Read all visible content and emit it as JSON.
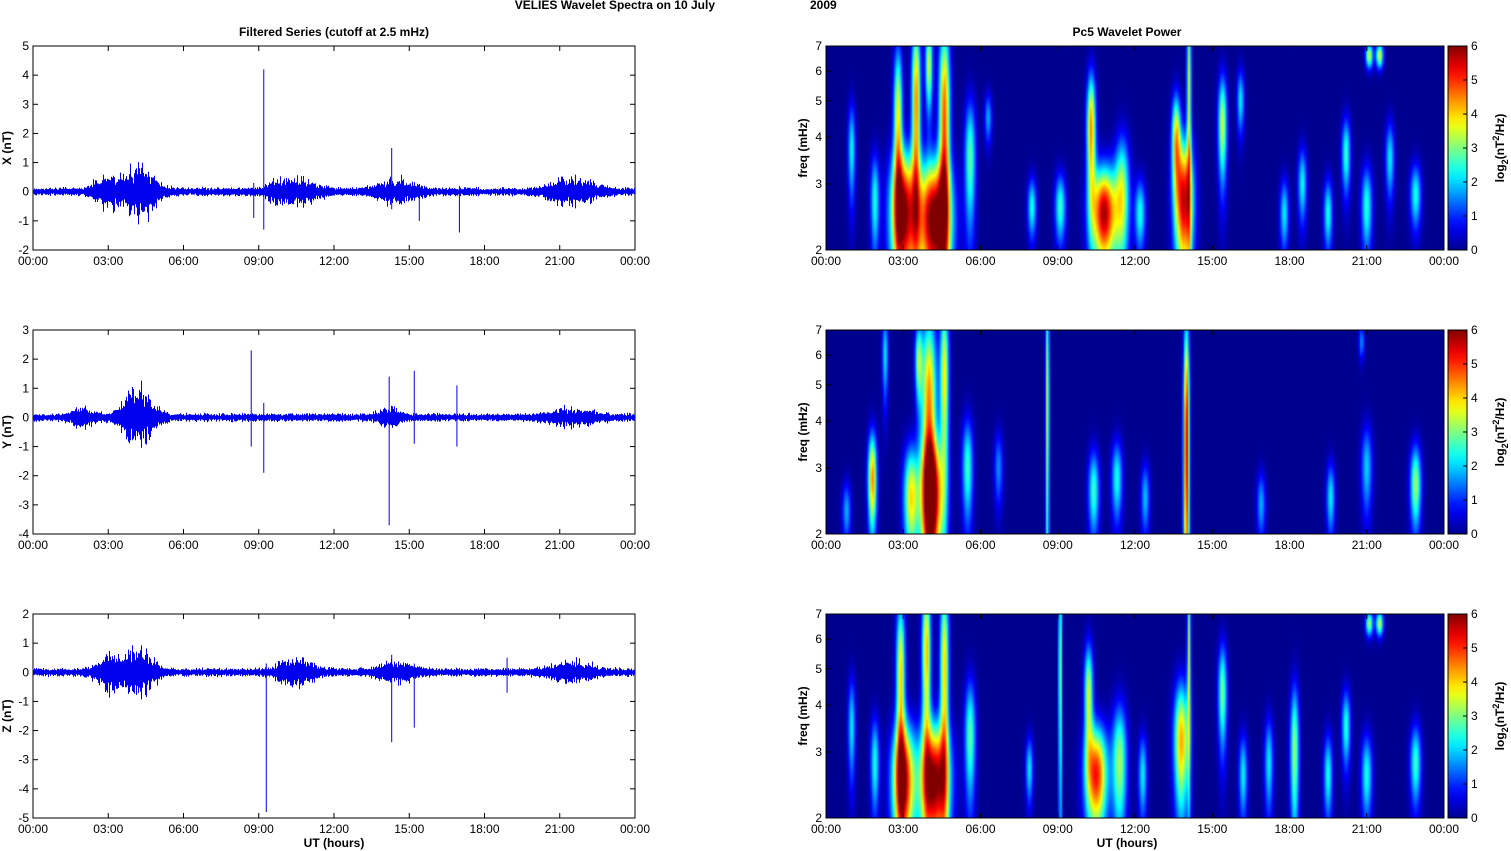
{
  "figure": {
    "suptitle_main": "VELIES Wavelet Spectra on 10 July",
    "suptitle_year": "2009",
    "left_title": "Filtered Series (cutoff at 2.5 mHz)",
    "right_title": "Pc5 Wavelet Power",
    "xlabel": "UT (hours)",
    "freq_label": "freq (mHz)",
    "colorbar_label": "log2(nT²/Hz)",
    "colorbar_label_parts": [
      "log",
      "2",
      "(nT",
      "2",
      "/Hz)"
    ]
  },
  "colors": {
    "trace": "#0000ee",
    "jet": [
      "#00008f",
      "#0000ff",
      "#00ffff",
      "#ffff00",
      "#ff0000",
      "#800000"
    ]
  },
  "chart_data": [
    {
      "type": "line",
      "panel": "X",
      "ylabel": "X (nT)",
      "ylim": [
        -2,
        5
      ],
      "yticks": [
        -2,
        -1,
        0,
        1,
        2,
        3,
        4,
        5
      ],
      "xlim": [
        0,
        24
      ],
      "xticklabels": [
        "00:00",
        "03:00",
        "06:00",
        "09:00",
        "12:00",
        "15:00",
        "18:00",
        "21:00",
        "00:00"
      ],
      "noise_amplitude": 0.12,
      "bursts": [
        {
          "center_h": 3.0,
          "width_h": 0.6,
          "amp": 0.45
        },
        {
          "center_h": 4.3,
          "width_h": 0.7,
          "amp": 0.7
        },
        {
          "center_h": 9.8,
          "width_h": 0.6,
          "amp": 0.25
        },
        {
          "center_h": 10.8,
          "width_h": 0.7,
          "amp": 0.3
        },
        {
          "center_h": 14.5,
          "width_h": 0.9,
          "amp": 0.3
        },
        {
          "center_h": 21.5,
          "width_h": 1.0,
          "amp": 0.35
        }
      ],
      "spikes": [
        {
          "t_h": 9.2,
          "min": -1.3,
          "max": 4.2
        },
        {
          "t_h": 8.8,
          "min": -0.9,
          "max": 0.3
        },
        {
          "t_h": 14.3,
          "min": -0.6,
          "max": 1.5
        },
        {
          "t_h": 17.0,
          "min": -1.4,
          "max": 0.2
        },
        {
          "t_h": 15.4,
          "min": -1.0,
          "max": 0.2
        }
      ]
    },
    {
      "type": "line",
      "panel": "Y",
      "ylabel": "Y (nT)",
      "ylim": [
        -4,
        3
      ],
      "yticks": [
        -4,
        -3,
        -2,
        -1,
        0,
        1,
        2,
        3
      ],
      "xlim": [
        0,
        24
      ],
      "xticklabels": [
        "00:00",
        "03:00",
        "06:00",
        "09:00",
        "12:00",
        "15:00",
        "18:00",
        "21:00",
        "00:00"
      ],
      "noise_amplitude": 0.12,
      "bursts": [
        {
          "center_h": 2.0,
          "width_h": 0.5,
          "amp": 0.25
        },
        {
          "center_h": 4.2,
          "width_h": 0.7,
          "amp": 0.8
        },
        {
          "center_h": 14.2,
          "width_h": 0.5,
          "amp": 0.2
        },
        {
          "center_h": 21.5,
          "width_h": 1.0,
          "amp": 0.2
        }
      ],
      "spikes": [
        {
          "t_h": 8.7,
          "min": -1.0,
          "max": 2.3
        },
        {
          "t_h": 9.2,
          "min": -1.9,
          "max": 0.5
        },
        {
          "t_h": 14.2,
          "min": -3.7,
          "max": 1.4
        },
        {
          "t_h": 15.2,
          "min": -0.9,
          "max": 1.6
        },
        {
          "t_h": 16.9,
          "min": -1.0,
          "max": 1.1
        }
      ]
    },
    {
      "type": "line",
      "panel": "Z",
      "ylabel": "Z (nT)",
      "ylim": [
        -5,
        2
      ],
      "yticks": [
        -5,
        -4,
        -3,
        -2,
        -1,
        0,
        1,
        2
      ],
      "xlim": [
        0,
        24
      ],
      "xticklabels": [
        "00:00",
        "03:00",
        "06:00",
        "09:00",
        "12:00",
        "15:00",
        "18:00",
        "21:00",
        "00:00"
      ],
      "noise_amplitude": 0.12,
      "bursts": [
        {
          "center_h": 3.0,
          "width_h": 0.6,
          "amp": 0.4
        },
        {
          "center_h": 4.2,
          "width_h": 0.7,
          "amp": 0.6
        },
        {
          "center_h": 10.5,
          "width_h": 0.8,
          "amp": 0.35
        },
        {
          "center_h": 14.5,
          "width_h": 0.8,
          "amp": 0.25
        },
        {
          "center_h": 21.5,
          "width_h": 1.0,
          "amp": 0.25
        }
      ],
      "spikes": [
        {
          "t_h": 9.3,
          "min": -4.8,
          "max": 0.3
        },
        {
          "t_h": 14.3,
          "min": -2.4,
          "max": 0.6
        },
        {
          "t_h": 15.2,
          "min": -1.9,
          "max": 0.3
        },
        {
          "t_h": 18.9,
          "min": -0.7,
          "max": 0.5
        }
      ]
    },
    {
      "type": "heatmap",
      "panel": "X power",
      "ylabel": "freq (mHz)",
      "ylim": [
        2,
        7
      ],
      "yscale": "log",
      "yticks": [
        2,
        3,
        4,
        5,
        6,
        7
      ],
      "xlim": [
        0,
        24
      ],
      "xticklabels": [
        "00:00",
        "03:00",
        "06:00",
        "09:00",
        "12:00",
        "15:00",
        "18:00",
        "21:00",
        "00:00"
      ],
      "zlim": [
        0,
        6
      ],
      "zticks": [
        0,
        1,
        2,
        3,
        4,
        5,
        6
      ],
      "blobs": [
        {
          "t": 3.0,
          "f": 2.5,
          "st": 0.35,
          "sf": 0.75,
          "amp": 6.0
        },
        {
          "t": 4.2,
          "f": 2.4,
          "st": 0.45,
          "sf": 0.7,
          "amp": 6.4
        },
        {
          "t": 2.8,
          "f": 4.5,
          "st": 0.12,
          "sf": 1.6,
          "amp": 3.8
        },
        {
          "t": 3.5,
          "f": 5.0,
          "st": 0.12,
          "sf": 2.0,
          "amp": 4.5
        },
        {
          "t": 4.6,
          "f": 4.5,
          "st": 0.15,
          "sf": 2.2,
          "amp": 4.8
        },
        {
          "t": 4.0,
          "f": 6.2,
          "st": 0.1,
          "sf": 1.2,
          "amp": 3.5
        },
        {
          "t": 1.0,
          "f": 3.7,
          "st": 0.1,
          "sf": 0.8,
          "amp": 2.3
        },
        {
          "t": 1.9,
          "f": 2.7,
          "st": 0.12,
          "sf": 0.6,
          "amp": 2.4
        },
        {
          "t": 5.6,
          "f": 3.5,
          "st": 0.15,
          "sf": 1.0,
          "amp": 2.8
        },
        {
          "t": 6.3,
          "f": 4.5,
          "st": 0.1,
          "sf": 0.5,
          "amp": 1.8
        },
        {
          "t": 8.0,
          "f": 2.6,
          "st": 0.12,
          "sf": 0.35,
          "amp": 2.4
        },
        {
          "t": 9.1,
          "f": 2.6,
          "st": 0.15,
          "sf": 0.4,
          "amp": 2.6
        },
        {
          "t": 10.3,
          "f": 4.2,
          "st": 0.12,
          "sf": 1.1,
          "amp": 4.5
        },
        {
          "t": 10.8,
          "f": 2.5,
          "st": 0.35,
          "sf": 0.55,
          "amp": 5.8
        },
        {
          "t": 11.5,
          "f": 2.8,
          "st": 0.2,
          "sf": 0.8,
          "amp": 3.2
        },
        {
          "t": 12.2,
          "f": 2.5,
          "st": 0.15,
          "sf": 0.4,
          "amp": 2.4
        },
        {
          "t": 13.9,
          "f": 2.7,
          "st": 0.25,
          "sf": 0.8,
          "amp": 5.6
        },
        {
          "t": 13.6,
          "f": 4.0,
          "st": 0.12,
          "sf": 0.8,
          "amp": 3.8
        },
        {
          "t": 14.1,
          "f": 5.5,
          "st": 0.06,
          "sf": 2.5,
          "amp": 3.5
        },
        {
          "t": 15.4,
          "f": 4.3,
          "st": 0.12,
          "sf": 1.0,
          "amp": 3.5
        },
        {
          "t": 16.1,
          "f": 5.0,
          "st": 0.1,
          "sf": 0.7,
          "amp": 2.2
        },
        {
          "t": 17.8,
          "f": 2.5,
          "st": 0.12,
          "sf": 0.4,
          "amp": 2.2
        },
        {
          "t": 18.5,
          "f": 3.0,
          "st": 0.12,
          "sf": 0.5,
          "amp": 2.3
        },
        {
          "t": 19.5,
          "f": 2.5,
          "st": 0.12,
          "sf": 0.4,
          "amp": 2.4
        },
        {
          "t": 20.2,
          "f": 3.6,
          "st": 0.12,
          "sf": 0.6,
          "amp": 2.6
        },
        {
          "t": 21.0,
          "f": 2.6,
          "st": 0.15,
          "sf": 0.5,
          "amp": 2.5
        },
        {
          "t": 21.1,
          "f": 6.6,
          "st": 0.1,
          "sf": 0.35,
          "amp": 3.5
        },
        {
          "t": 21.5,
          "f": 6.6,
          "st": 0.1,
          "sf": 0.35,
          "amp": 3.6
        },
        {
          "t": 21.9,
          "f": 3.5,
          "st": 0.12,
          "sf": 0.6,
          "amp": 2.2
        },
        {
          "t": 22.9,
          "f": 2.8,
          "st": 0.15,
          "sf": 0.4,
          "amp": 2.4
        }
      ]
    },
    {
      "type": "heatmap",
      "panel": "Y power",
      "ylabel": "freq (mHz)",
      "ylim": [
        2,
        7
      ],
      "yscale": "log",
      "yticks": [
        2,
        3,
        4,
        5,
        6,
        7
      ],
      "xlim": [
        0,
        24
      ],
      "xticklabels": [
        "00:00",
        "03:00",
        "06:00",
        "09:00",
        "12:00",
        "15:00",
        "18:00",
        "21:00",
        "00:00"
      ],
      "zlim": [
        0,
        6
      ],
      "zticks": [
        0,
        1,
        2,
        3,
        4,
        5,
        6
      ],
      "blobs": [
        {
          "t": 1.8,
          "f": 2.8,
          "st": 0.12,
          "sf": 0.6,
          "amp": 4.5
        },
        {
          "t": 3.3,
          "f": 2.5,
          "st": 0.2,
          "sf": 0.6,
          "amp": 3.8
        },
        {
          "t": 4.1,
          "f": 2.5,
          "st": 0.3,
          "sf": 0.7,
          "amp": 6.0
        },
        {
          "t": 4.0,
          "f": 4.5,
          "st": 0.2,
          "sf": 2.0,
          "amp": 4.5
        },
        {
          "t": 4.6,
          "f": 5.2,
          "st": 0.12,
          "sf": 2.0,
          "amp": 3.8
        },
        {
          "t": 3.6,
          "f": 5.8,
          "st": 0.1,
          "sf": 1.0,
          "amp": 3.0
        },
        {
          "t": 2.3,
          "f": 6.0,
          "st": 0.08,
          "sf": 1.2,
          "amp": 2.2
        },
        {
          "t": 5.5,
          "f": 3.0,
          "st": 0.15,
          "sf": 0.7,
          "amp": 2.6
        },
        {
          "t": 0.8,
          "f": 2.3,
          "st": 0.12,
          "sf": 0.3,
          "amp": 1.8
        },
        {
          "t": 6.7,
          "f": 3.0,
          "st": 0.12,
          "sf": 0.5,
          "amp": 1.6
        },
        {
          "t": 8.6,
          "f": 4.5,
          "st": 0.05,
          "sf": 3.0,
          "amp": 3.6
        },
        {
          "t": 10.4,
          "f": 2.6,
          "st": 0.15,
          "sf": 0.5,
          "amp": 2.6
        },
        {
          "t": 11.3,
          "f": 2.8,
          "st": 0.15,
          "sf": 0.5,
          "amp": 2.4
        },
        {
          "t": 14.0,
          "f": 3.5,
          "st": 0.08,
          "sf": 2.5,
          "amp": 5.6
        },
        {
          "t": 12.4,
          "f": 2.5,
          "st": 0.12,
          "sf": 0.4,
          "amp": 1.9
        },
        {
          "t": 16.9,
          "f": 2.4,
          "st": 0.12,
          "sf": 0.35,
          "amp": 1.8
        },
        {
          "t": 19.6,
          "f": 2.5,
          "st": 0.12,
          "sf": 0.4,
          "amp": 2.2
        },
        {
          "t": 21.0,
          "f": 3.0,
          "st": 0.15,
          "sf": 0.6,
          "amp": 2.0
        },
        {
          "t": 22.9,
          "f": 2.7,
          "st": 0.15,
          "sf": 0.5,
          "amp": 3.2
        },
        {
          "t": 20.8,
          "f": 6.5,
          "st": 0.08,
          "sf": 0.5,
          "amp": 1.6
        }
      ]
    },
    {
      "type": "heatmap",
      "panel": "Z power",
      "ylabel": "freq (mHz)",
      "ylim": [
        2,
        7
      ],
      "yscale": "log",
      "yticks": [
        2,
        3,
        4,
        5,
        6,
        7
      ],
      "xlim": [
        0,
        24
      ],
      "xticklabels": [
        "00:00",
        "03:00",
        "06:00",
        "09:00",
        "12:00",
        "15:00",
        "18:00",
        "21:00",
        "00:00"
      ],
      "zlim": [
        0,
        6
      ],
      "zticks": [
        0,
        1,
        2,
        3,
        4,
        5,
        6
      ],
      "blobs": [
        {
          "t": 3.0,
          "f": 2.5,
          "st": 0.3,
          "sf": 0.7,
          "amp": 5.8
        },
        {
          "t": 4.2,
          "f": 2.5,
          "st": 0.4,
          "sf": 0.7,
          "amp": 6.2
        },
        {
          "t": 2.9,
          "f": 4.8,
          "st": 0.12,
          "sf": 1.8,
          "amp": 4.0
        },
        {
          "t": 3.9,
          "f": 5.5,
          "st": 0.12,
          "sf": 2.0,
          "amp": 4.2
        },
        {
          "t": 4.6,
          "f": 5.0,
          "st": 0.12,
          "sf": 2.2,
          "amp": 4.0
        },
        {
          "t": 1.0,
          "f": 3.5,
          "st": 0.1,
          "sf": 0.8,
          "amp": 2.2
        },
        {
          "t": 1.9,
          "f": 2.8,
          "st": 0.12,
          "sf": 0.6,
          "amp": 2.4
        },
        {
          "t": 5.6,
          "f": 3.3,
          "st": 0.15,
          "sf": 0.9,
          "amp": 2.8
        },
        {
          "t": 7.9,
          "f": 2.7,
          "st": 0.1,
          "sf": 0.4,
          "amp": 2.2
        },
        {
          "t": 9.1,
          "f": 5.0,
          "st": 0.05,
          "sf": 3.0,
          "amp": 3.2
        },
        {
          "t": 10.5,
          "f": 2.6,
          "st": 0.3,
          "sf": 0.6,
          "amp": 5.2
        },
        {
          "t": 10.2,
          "f": 4.3,
          "st": 0.12,
          "sf": 1.0,
          "amp": 3.5
        },
        {
          "t": 11.4,
          "f": 2.8,
          "st": 0.2,
          "sf": 0.8,
          "amp": 3.2
        },
        {
          "t": 12.3,
          "f": 2.6,
          "st": 0.12,
          "sf": 0.5,
          "amp": 2.2
        },
        {
          "t": 13.8,
          "f": 3.2,
          "st": 0.2,
          "sf": 0.9,
          "amp": 4.3
        },
        {
          "t": 14.1,
          "f": 5.5,
          "st": 0.05,
          "sf": 2.5,
          "amp": 3.4
        },
        {
          "t": 15.4,
          "f": 4.3,
          "st": 0.12,
          "sf": 1.0,
          "amp": 3.0
        },
        {
          "t": 16.2,
          "f": 2.6,
          "st": 0.12,
          "sf": 0.5,
          "amp": 2.2
        },
        {
          "t": 17.2,
          "f": 2.8,
          "st": 0.12,
          "sf": 0.6,
          "amp": 2.2
        },
        {
          "t": 18.2,
          "f": 3.0,
          "st": 0.12,
          "sf": 1.0,
          "amp": 3.2
        },
        {
          "t": 19.5,
          "f": 2.6,
          "st": 0.12,
          "sf": 0.5,
          "amp": 2.4
        },
        {
          "t": 20.2,
          "f": 3.5,
          "st": 0.12,
          "sf": 0.6,
          "amp": 2.5
        },
        {
          "t": 21.0,
          "f": 2.6,
          "st": 0.15,
          "sf": 0.5,
          "amp": 2.4
        },
        {
          "t": 21.1,
          "f": 6.6,
          "st": 0.1,
          "sf": 0.35,
          "amp": 3.2
        },
        {
          "t": 21.5,
          "f": 6.6,
          "st": 0.1,
          "sf": 0.35,
          "amp": 3.4
        },
        {
          "t": 22.9,
          "f": 2.8,
          "st": 0.15,
          "sf": 0.5,
          "amp": 2.6
        }
      ]
    }
  ]
}
